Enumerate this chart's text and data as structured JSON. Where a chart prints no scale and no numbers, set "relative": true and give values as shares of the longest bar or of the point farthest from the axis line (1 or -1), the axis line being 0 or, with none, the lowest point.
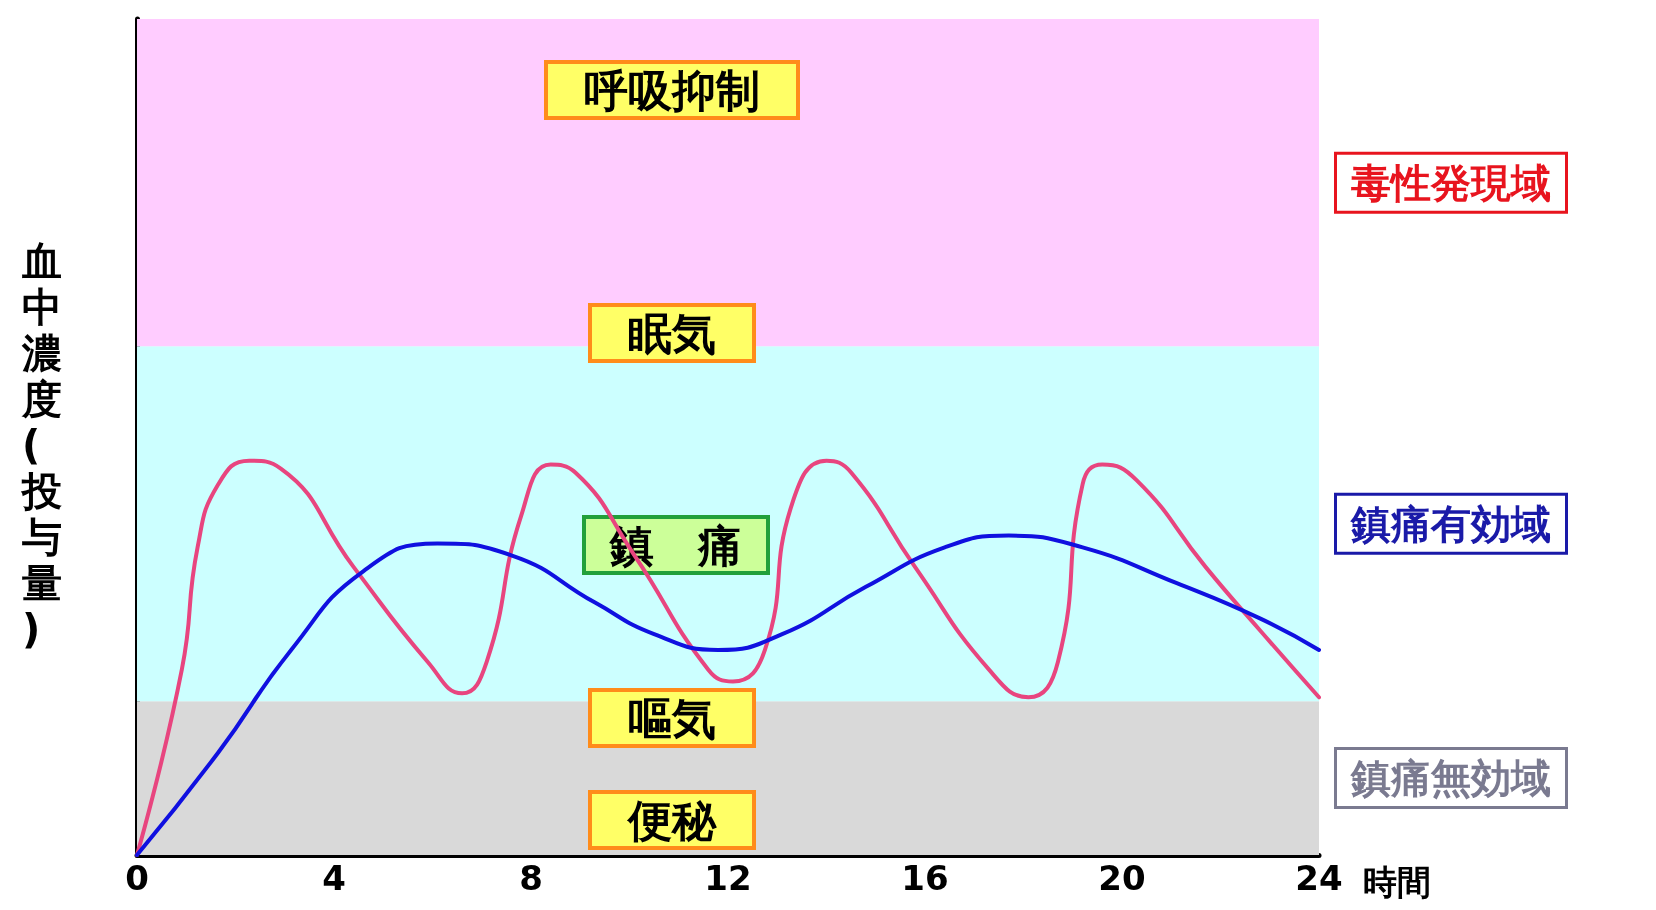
{
  "chart_data": {
    "type": "line",
    "relative": true,
    "xlabel": "時間",
    "ylabel": "血中濃度(投与量)",
    "xlim": [
      0,
      24
    ],
    "xticks": [
      0,
      4,
      8,
      12,
      16,
      20,
      {
        "value": 24,
        "label": "24"
      }
    ],
    "grid": false,
    "marker": "none",
    "line_style": "solid",
    "series": [
      {
        "color": "#e8457f",
        "x": [
          0,
          0.91,
          1.23,
          1.65,
          2.28,
          2.92,
          4.4,
          5.9,
          6.6,
          7.1,
          7.8,
          8.4,
          8.9,
          10.1,
          11.6,
          12.1,
          12.75,
          13.3,
          14.0,
          14.5,
          15.8,
          17.3,
          18.1,
          18.7,
          19.2,
          19.6,
          20.3,
          21.7,
          22.8,
          24
        ],
        "values": [
          0,
          0.47,
          0.78,
          0.94,
          1.0,
          0.98,
          0.73,
          0.49,
          0.41,
          0.49,
          0.86,
          0.99,
          0.97,
          0.76,
          0.47,
          0.44,
          0.52,
          0.89,
          1.0,
          0.97,
          0.73,
          0.47,
          0.4,
          0.49,
          0.94,
          0.99,
          0.95,
          0.73,
          0.57,
          0.4
        ]
      },
      {
        "color": "#1010e0",
        "x": [
          0,
          1.65,
          3.13,
          4.6,
          6.1,
          7.6,
          9.3,
          10.5,
          11.8,
          13.1,
          14.8,
          16.4,
          17.7,
          19.2,
          21.1,
          22.8,
          24
        ],
        "values": [
          0,
          0.26,
          0.52,
          0.72,
          0.79,
          0.76,
          0.64,
          0.56,
          0.52,
          0.56,
          0.68,
          0.78,
          0.81,
          0.78,
          0.69,
          0.6,
          0.52
        ]
      }
    ],
    "bands": [
      {
        "axis": "y",
        "from": 0,
        "to": 0.39,
        "label": "鎮痛無効域",
        "color": "#d9d9d9"
      },
      {
        "axis": "y",
        "from": 0.39,
        "to": 1.29,
        "label": "鎮痛有効域",
        "color": "#ccffff"
      },
      {
        "axis": "y",
        "from": 1.29,
        "to": 2.12,
        "label": "毒性発現域",
        "color": "#ffccff"
      }
    ],
    "annotations": [
      "呼吸抑制",
      "眠気",
      "鎮　痛",
      "嘔気",
      "便秘"
    ]
  }
}
